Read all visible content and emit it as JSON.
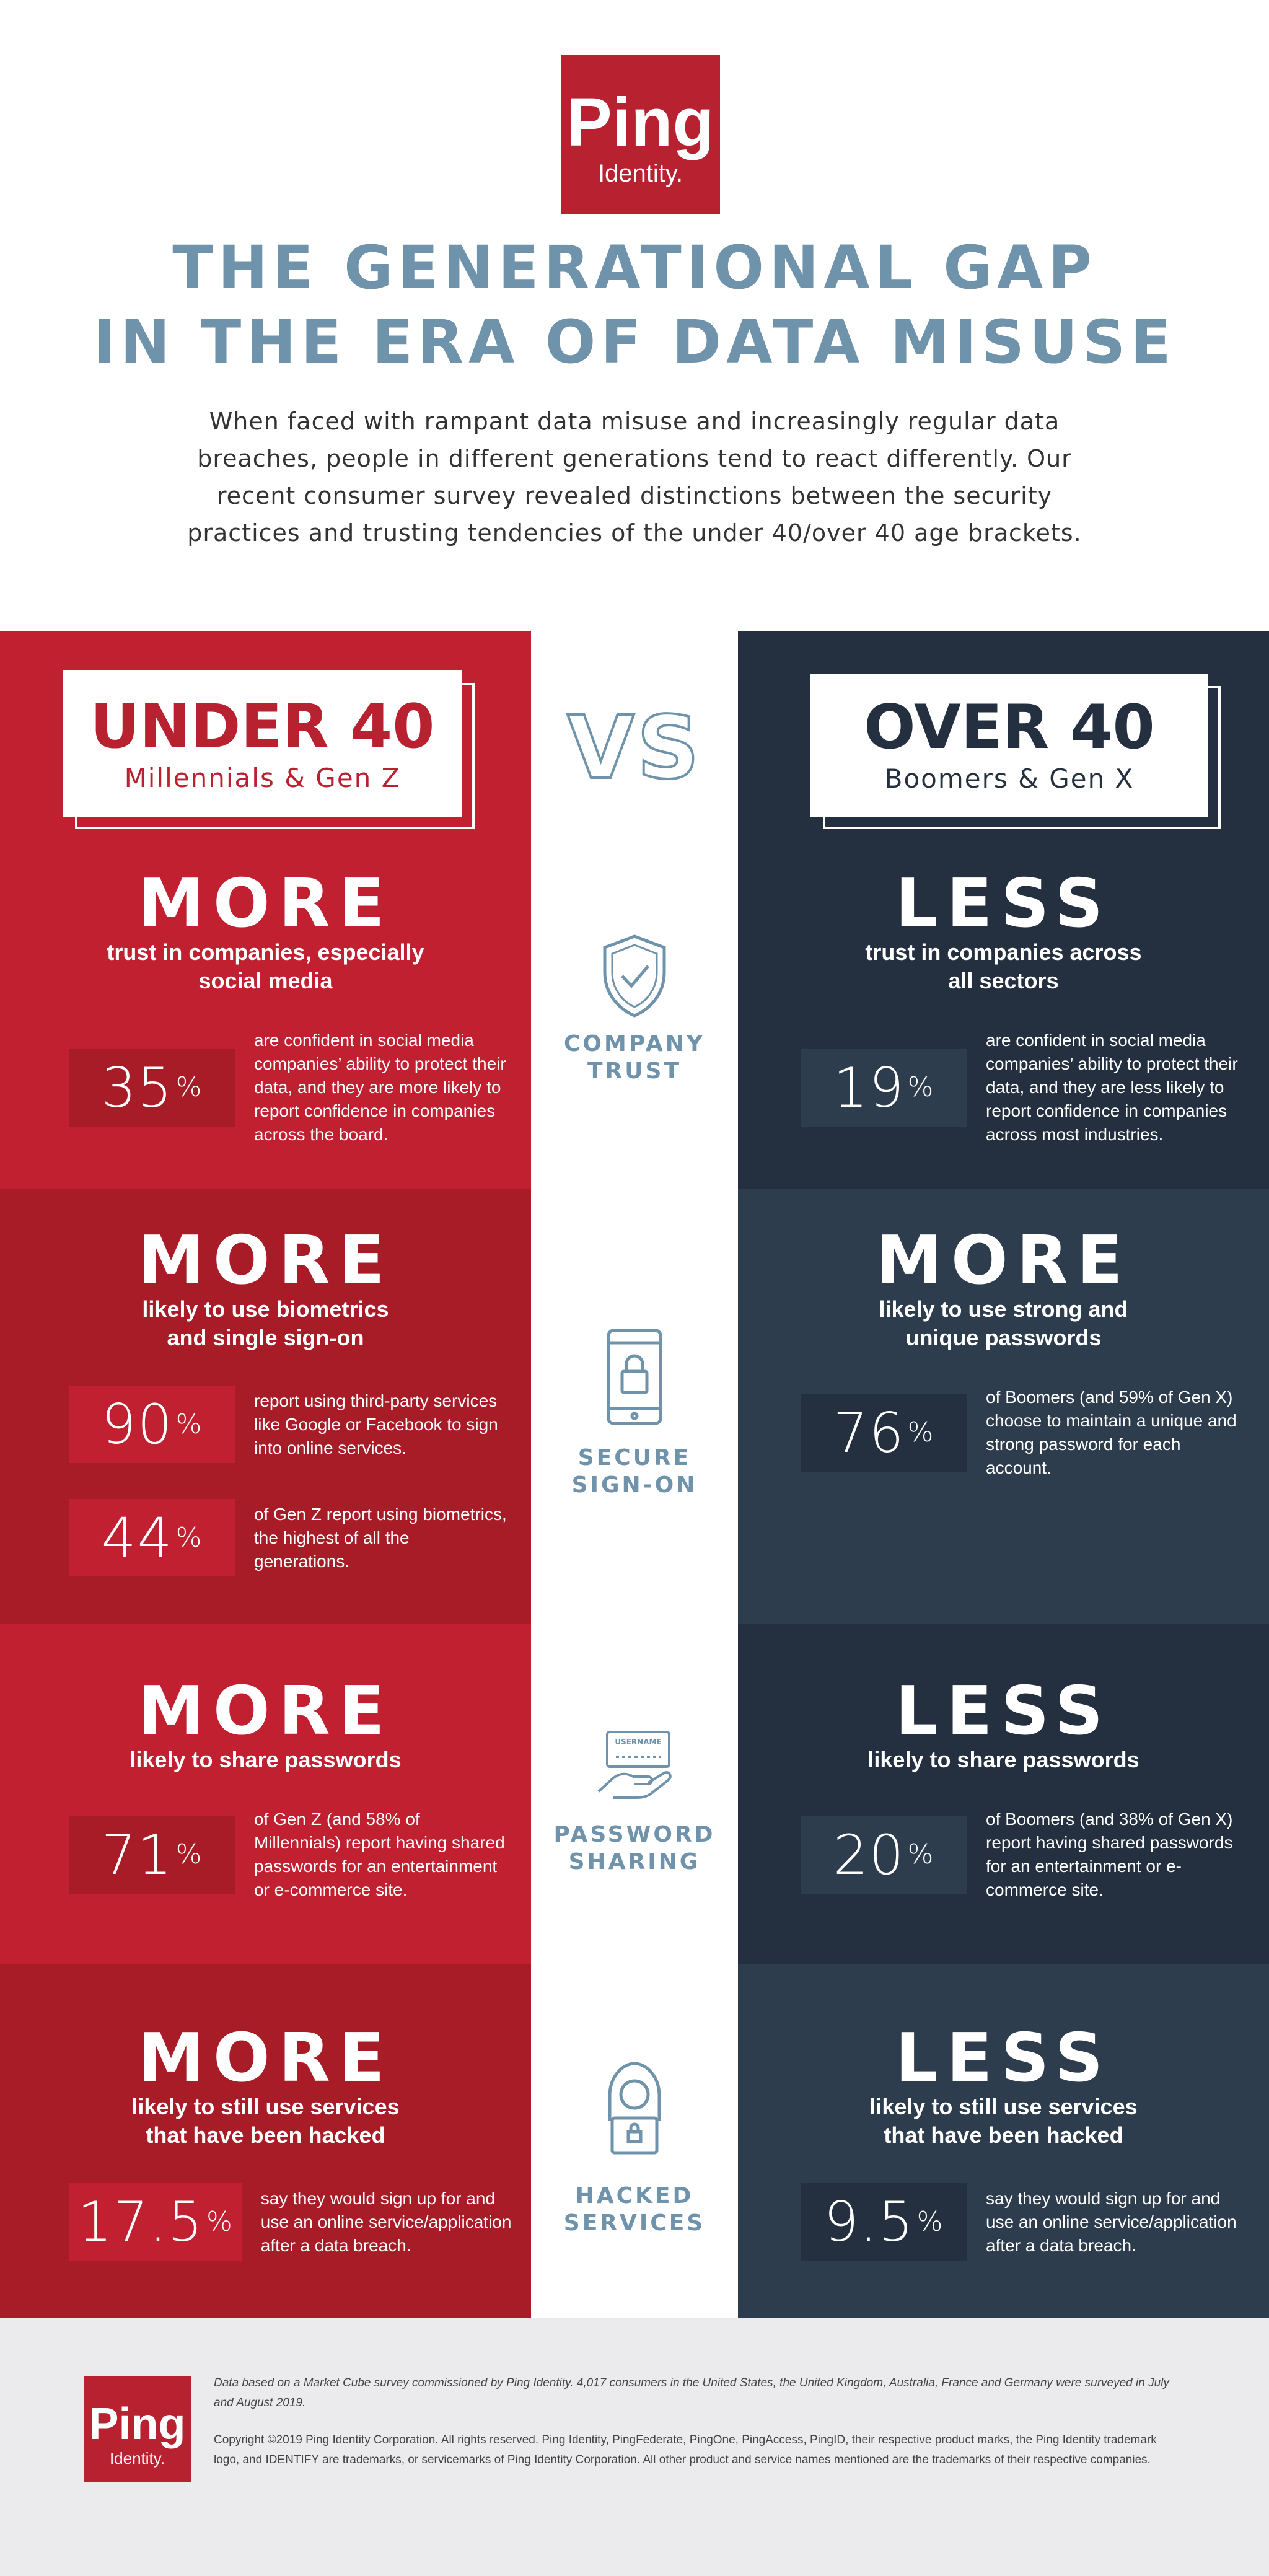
{
  "header": {
    "logo": {
      "name": "Ping",
      "sub": "Identity."
    },
    "title": [
      "THE GENERATIONAL GAP",
      "IN THE ERA OF DATA MISUSE"
    ],
    "intro": "When faced with rampant data misuse and increasingly regular data breaches, people in different generations tend to react differently. Our recent consumer survey revealed distinctions between the security practices and trusting tendencies of the under 40/over 40 age brackets."
  },
  "vs": "VS",
  "columns": [
    {
      "title": "UNDER 40",
      "subtitle": "Millennials & Gen Z"
    },
    {
      "title": "OVER 40",
      "subtitle": "Boomers & Gen X"
    }
  ],
  "rows": [
    {
      "label": [
        "COMPANY",
        "TRUST"
      ],
      "cells": [
        {
          "heading": "MORE",
          "sub": [
            "trust in companies, especially",
            "social media"
          ],
          "stats": [
            {
              "value": "35",
              "unit": "%",
              "text": "are confident in social media companies’ ability to protect their data, and they are more likely to report confidence in companies across the board."
            }
          ]
        },
        {
          "heading": "LESS",
          "sub": [
            "trust in companies across",
            "all sectors"
          ],
          "stats": [
            {
              "value": "19",
              "unit": "%",
              "text": "are confident in social media companies’ ability to protect their data, and they are less likely to report confidence in companies across most industries."
            }
          ]
        }
      ]
    },
    {
      "label": [
        "SECURE",
        "SIGN-ON"
      ],
      "cells": [
        {
          "heading": "MORE",
          "sub": [
            "likely to use biometrics",
            "and single sign-on"
          ],
          "stats": [
            {
              "value": "90",
              "unit": "%",
              "text": "report using third-party services like Google or Facebook to sign into online services."
            },
            {
              "value": "44",
              "unit": "%",
              "text": "of Gen Z report using biometrics, the highest of all the generations."
            }
          ]
        },
        {
          "heading": "MORE",
          "sub": [
            "likely to use strong and",
            "unique passwords"
          ],
          "stats": [
            {
              "value": "76",
              "unit": "%",
              "text": "of Boomers (and 59% of Gen X) choose to maintain a unique and strong password for each account."
            }
          ]
        }
      ]
    },
    {
      "label": [
        "PASSWORD",
        "SHARING"
      ],
      "cells": [
        {
          "heading": "MORE",
          "sub": [
            "likely to share passwords"
          ],
          "stats": [
            {
              "value": "71",
              "unit": "%",
              "text": "of Gen Z (and 58% of Millennials) report having shared passwords for an entertainment or e-commerce site."
            }
          ]
        },
        {
          "heading": "LESS",
          "sub": [
            "likely to share passwords"
          ],
          "stats": [
            {
              "value": "20",
              "unit": "%",
              "text": "of Boomers (and 38% of Gen X) report having shared passwords for an entertainment or e-commerce site."
            }
          ]
        }
      ]
    },
    {
      "label": [
        "HACKED",
        "SERVICES"
      ],
      "cells": [
        {
          "heading": "MORE",
          "sub": [
            "likely to still use services",
            "that have been hacked"
          ],
          "stats": [
            {
              "value": "17.5",
              "unit": "%",
              "text": "say they would sign up for and use an online service/application after a data breach."
            }
          ]
        },
        {
          "heading": "LESS",
          "sub": [
            "likely to still use services",
            "that have been hacked"
          ],
          "stats": [
            {
              "value": "9.5",
              "unit": "%",
              "text": "say they would sign up for and use an online service/application after a data breach."
            }
          ]
        }
      ]
    }
  ],
  "icons": {
    "password_card": "USERNAME"
  },
  "footer": {
    "logo": {
      "name": "Ping",
      "sub": "Identity."
    },
    "note": "Data based on a Market Cube survey commissioned by Ping Identity. 4,017 consumers in the United States, the United Kingdom, Australia, France and Germany were surveyed in July and August 2019.",
    "copyright": "Copyright ©2019 Ping Identity Corporation. All rights reserved. Ping Identity, PingFederate, PingOne, PingAccess, PingID, their respective product marks, the Ping Identity trademark logo, and IDENTIFY are trademarks, or servicemarks of Ping Identity Corporation. All other product and service names mentioned are the trademarks of their respective companies."
  }
}
